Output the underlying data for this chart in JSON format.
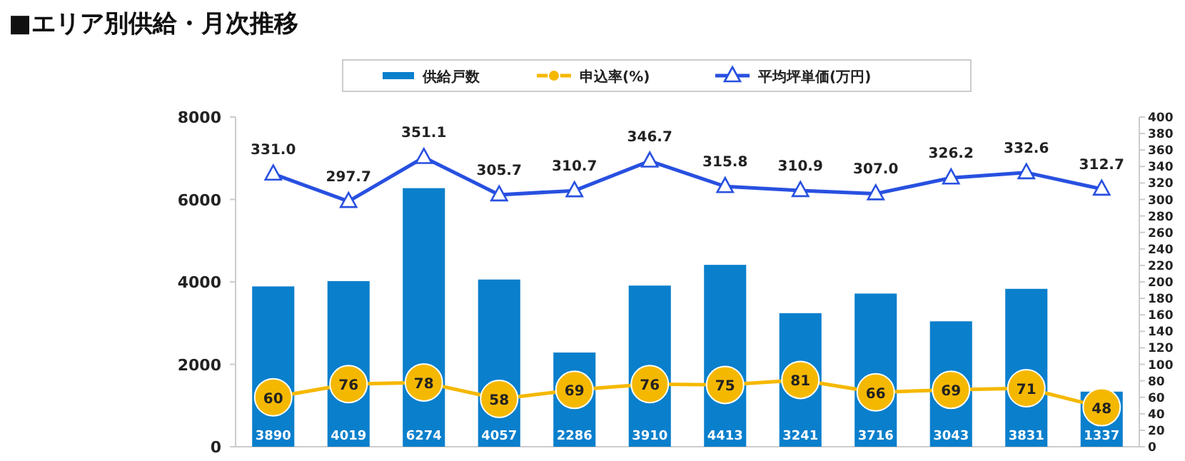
{
  "chart_data": {
    "type": "bar",
    "title": "■エリア別供給・月次推移",
    "categories": [
      null,
      null,
      null,
      null,
      null,
      null,
      null,
      null,
      null,
      null,
      null,
      null
    ],
    "series": [
      {
        "name": "供給戸数",
        "color": "#0a7fcc",
        "values": [
          3890,
          4019,
          6274,
          4057,
          2286,
          3910,
          4413,
          3241,
          3716,
          3043,
          3831,
          1337
        ]
      },
      {
        "name": "申込率(%)",
        "type": "line",
        "axis": "y2",
        "color": "#f5b800",
        "marker": "circle",
        "values": [
          60,
          76,
          78,
          58,
          69,
          76,
          75,
          81,
          66,
          69,
          71,
          48
        ]
      },
      {
        "name": "平均坪単価(万円)",
        "type": "line",
        "axis": "y2",
        "color": "#2850e0",
        "marker": "triangle",
        "values": [
          331.0,
          297.7,
          351.1,
          305.7,
          310.7,
          346.7,
          315.8,
          310.9,
          307.0,
          326.2,
          332.6,
          312.7
        ],
        "value_labels": [
          "331.0",
          "297.7",
          "351.1",
          "305.7",
          "310.7",
          "346.7",
          "315.8",
          "310.9",
          "307.0",
          "326.2",
          "332.6",
          "312.7"
        ]
      }
    ],
    "ylim": [
      0,
      8000
    ],
    "yticks": [
      0,
      2000,
      4000,
      6000,
      8000
    ],
    "y2lim": [
      0,
      400
    ],
    "y2ticks": [
      0,
      20,
      40,
      60,
      80,
      100,
      120,
      140,
      160,
      180,
      200,
      220,
      240,
      260,
      280,
      300,
      320,
      340,
      360,
      380,
      400
    ],
    "data_labels": true,
    "legend": "top",
    "grid": false
  }
}
